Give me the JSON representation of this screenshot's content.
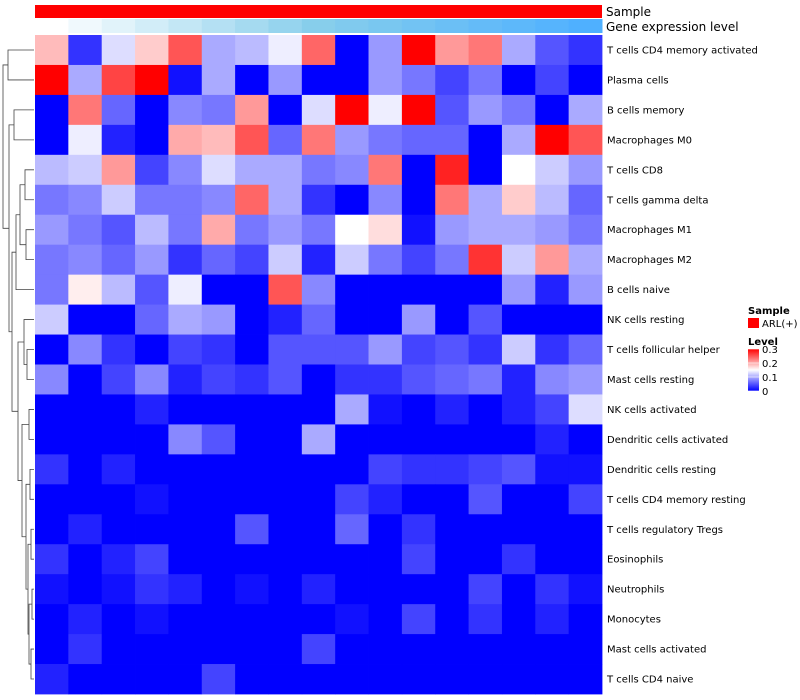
{
  "chart_data": {
    "type": "heatmap",
    "title": "",
    "annotations": [
      {
        "name": "Sample",
        "legend_title": "Sample",
        "legend_entry": "ARL(+)",
        "color": "#ff0000"
      },
      {
        "name": "Gene expression level"
      }
    ],
    "gene_expression_gradient": [
      "#ffffff",
      "#87ceeb",
      "#4fb0ff"
    ],
    "legend": {
      "title": "Level",
      "ticks": [
        "0.3",
        "0.2",
        "0.1",
        "0"
      ],
      "tick_values": [
        0.3,
        0.2,
        0.1,
        0
      ],
      "colors": {
        "low": "#0000ff",
        "mid": "#ffffff",
        "high": "#ff0000"
      },
      "min": 0,
      "mid": 0.15,
      "max": 0.3
    },
    "rows": [
      "T cells CD4 memory activated",
      "Plasma cells",
      "B cells memory",
      "Macrophages M0",
      "T cells CD8",
      "T cells gamma delta",
      "Macrophages M1",
      "Macrophages M2",
      "B cells naive",
      "NK cells resting",
      "T cells follicular helper",
      "Mast cells resting",
      "NK cells activated",
      "Dendritic cells activated",
      "Dendritic cells resting",
      "T cells CD4 memory resting",
      "T cells regulatory  Tregs",
      "Eosinophils",
      "Neutrophils",
      "Monocytes",
      "Mast cells activated",
      "T cells CD4 naive"
    ],
    "values": [
      [
        0.19,
        0.03,
        0.13,
        0.18,
        0.25,
        0.1,
        0.11,
        0.14,
        0.24,
        0.0,
        0.09,
        0.3,
        0.21,
        0.23,
        0.1,
        0.05,
        0.03
      ],
      [
        0.3,
        0.1,
        0.26,
        0.3,
        0.01,
        0.1,
        0.0,
        0.09,
        0.0,
        0.0,
        0.09,
        0.07,
        0.04,
        0.07,
        0.0,
        0.04,
        0.0
      ],
      [
        0.0,
        0.23,
        0.06,
        0.0,
        0.08,
        0.07,
        0.21,
        0.0,
        0.13,
        0.3,
        0.14,
        0.3,
        0.05,
        0.09,
        0.07,
        0.0,
        0.1
      ],
      [
        0.0,
        0.14,
        0.02,
        0.0,
        0.2,
        0.19,
        0.25,
        0.06,
        0.23,
        0.09,
        0.07,
        0.06,
        0.06,
        0.0,
        0.1,
        0.3,
        0.25
      ],
      [
        0.11,
        0.12,
        0.21,
        0.04,
        0.08,
        0.13,
        0.1,
        0.1,
        0.07,
        0.08,
        0.23,
        0.0,
        0.28,
        0.0,
        0.15,
        0.12,
        0.09
      ],
      [
        0.07,
        0.08,
        0.12,
        0.07,
        0.07,
        0.08,
        0.24,
        0.1,
        0.03,
        0.0,
        0.08,
        0.0,
        0.23,
        0.1,
        0.18,
        0.11,
        0.06
      ],
      [
        0.09,
        0.07,
        0.05,
        0.11,
        0.07,
        0.2,
        0.07,
        0.09,
        0.07,
        0.15,
        0.17,
        0.01,
        0.09,
        0.1,
        0.1,
        0.09,
        0.07
      ],
      [
        0.07,
        0.08,
        0.06,
        0.09,
        0.03,
        0.06,
        0.04,
        0.12,
        0.02,
        0.12,
        0.07,
        0.04,
        0.07,
        0.27,
        0.12,
        0.21,
        0.1
      ],
      [
        0.07,
        0.16,
        0.11,
        0.05,
        0.14,
        0.0,
        0.0,
        0.25,
        0.08,
        0.0,
        0.0,
        0.0,
        0.0,
        0.0,
        0.09,
        0.02,
        0.09
      ],
      [
        0.12,
        0.0,
        0.0,
        0.06,
        0.1,
        0.09,
        0.0,
        0.02,
        0.06,
        0.0,
        0.0,
        0.09,
        0.0,
        0.05,
        0.0,
        0.0,
        0.0
      ],
      [
        0.0,
        0.08,
        0.03,
        0.0,
        0.04,
        0.03,
        0.0,
        0.05,
        0.05,
        0.05,
        0.09,
        0.04,
        0.05,
        0.03,
        0.12,
        0.03,
        0.06
      ],
      [
        0.08,
        0.0,
        0.04,
        0.08,
        0.02,
        0.04,
        0.03,
        0.05,
        0.0,
        0.03,
        0.03,
        0.05,
        0.06,
        0.07,
        0.02,
        0.08,
        0.09
      ],
      [
        0.0,
        0.0,
        0.0,
        0.02,
        0.0,
        0.0,
        0.0,
        0.0,
        0.0,
        0.1,
        0.01,
        0.0,
        0.02,
        0.0,
        0.02,
        0.04,
        0.13
      ],
      [
        0.0,
        0.0,
        0.0,
        0.0,
        0.08,
        0.05,
        0.0,
        0.0,
        0.1,
        0.0,
        0.0,
        0.0,
        0.0,
        0.0,
        0.0,
        0.02,
        0.0
      ],
      [
        0.03,
        0.0,
        0.02,
        0.0,
        0.0,
        0.0,
        0.0,
        0.0,
        0.0,
        0.0,
        0.04,
        0.03,
        0.03,
        0.04,
        0.05,
        0.01,
        0.01
      ],
      [
        0.0,
        0.0,
        0.0,
        0.01,
        0.0,
        0.0,
        0.0,
        0.0,
        0.0,
        0.04,
        0.02,
        0.0,
        0.0,
        0.05,
        0.0,
        0.0,
        0.04
      ],
      [
        0.0,
        0.02,
        0.0,
        0.0,
        0.0,
        0.0,
        0.05,
        0.0,
        0.0,
        0.06,
        0.0,
        0.03,
        0.0,
        0.0,
        0.0,
        0.0,
        0.0
      ],
      [
        0.03,
        0.0,
        0.02,
        0.04,
        0.0,
        0.0,
        0.0,
        0.0,
        0.0,
        0.0,
        0.0,
        0.04,
        0.0,
        0.0,
        0.03,
        0.0,
        0.0
      ],
      [
        0.01,
        0.0,
        0.01,
        0.03,
        0.02,
        0.0,
        0.01,
        0.0,
        0.02,
        0.0,
        0.0,
        0.0,
        0.0,
        0.04,
        0.0,
        0.03,
        0.01
      ],
      [
        0.0,
        0.02,
        0.0,
        0.01,
        0.0,
        0.0,
        0.0,
        0.0,
        0.0,
        0.01,
        0.0,
        0.04,
        0.0,
        0.03,
        0.0,
        0.02,
        0.0
      ],
      [
        0.0,
        0.03,
        0.0,
        0.0,
        0.0,
        0.0,
        0.0,
        0.0,
        0.04,
        0.0,
        0.0,
        0.0,
        0.0,
        0.0,
        0.0,
        0.0,
        0.0
      ],
      [
        0.02,
        0.0,
        0.0,
        0.0,
        0.0,
        0.04,
        0.0,
        0.0,
        0.0,
        0.0,
        0.0,
        0.0,
        0.0,
        0.0,
        0.0,
        0.0,
        0.0
      ]
    ],
    "row_dendrogram": true,
    "column_dendrogram": false
  }
}
